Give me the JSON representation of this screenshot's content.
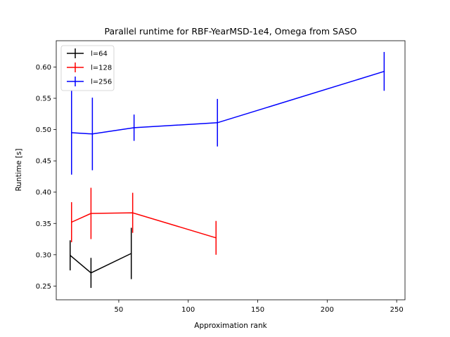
{
  "chart_data": {
    "type": "line",
    "title": "Parallel runtime for RBF-YearMSD-1e4, Omega from SASO",
    "xlabel": "Approximation rank",
    "ylabel": "Runtime [s]",
    "xlim": [
      5,
      256
    ],
    "ylim": [
      0.228,
      0.642
    ],
    "x_ticks": [
      50,
      100,
      150,
      200,
      250
    ],
    "y_ticks": [
      0.25,
      0.3,
      0.35,
      0.4,
      0.45,
      0.5,
      0.55,
      0.6
    ],
    "x_tick_labels": [
      "50",
      "100",
      "150",
      "200",
      "250"
    ],
    "y_tick_labels": [
      "0.25",
      "0.30",
      "0.35",
      "0.40",
      "0.45",
      "0.50",
      "0.55",
      "0.60"
    ],
    "legend_position": "top-left",
    "grid": false,
    "series": [
      {
        "name": "l=64",
        "color": "#000000",
        "x": [
          15,
          30,
          59
        ],
        "y": [
          0.299,
          0.271,
          0.302
        ],
        "yerr": [
          0.024,
          0.024,
          0.041
        ]
      },
      {
        "name": "l=128",
        "color": "#ff0000",
        "x": [
          16,
          30,
          60,
          120
        ],
        "y": [
          0.352,
          0.366,
          0.367,
          0.327
        ],
        "yerr": [
          0.032,
          0.041,
          0.032,
          0.027
        ]
      },
      {
        "name": "l=256",
        "color": "#0000ff",
        "x": [
          16,
          31,
          61,
          121,
          241
        ],
        "y": [
          0.495,
          0.493,
          0.503,
          0.511,
          0.593
        ],
        "yerr": [
          0.067,
          0.058,
          0.021,
          0.038,
          0.031
        ]
      }
    ]
  }
}
